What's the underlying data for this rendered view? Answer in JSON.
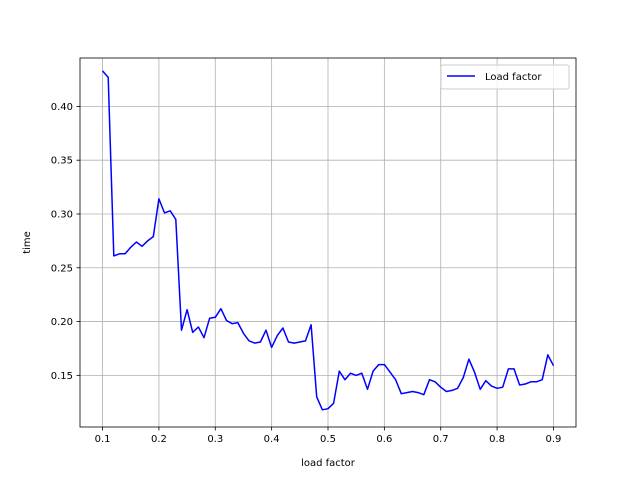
{
  "chart_data": {
    "type": "line",
    "title": "",
    "xlabel": "load factor",
    "ylabel": "time",
    "xlim": [
      0.06,
      0.94
    ],
    "ylim": [
      0.102,
      0.445
    ],
    "xticks": [
      "0.1",
      "0.2",
      "0.3",
      "0.4",
      "0.5",
      "0.6",
      "0.7",
      "0.8",
      "0.9"
    ],
    "yticks": [
      "0.15",
      "0.20",
      "0.25",
      "0.30",
      "0.35",
      "0.40"
    ],
    "grid": true,
    "legend_position": "top-right",
    "series": [
      {
        "name": "Load factor",
        "color": "#0000ff",
        "x": [
          0.1,
          0.11,
          0.12,
          0.13,
          0.14,
          0.15,
          0.16,
          0.17,
          0.18,
          0.19,
          0.2,
          0.21,
          0.22,
          0.23,
          0.24,
          0.25,
          0.26,
          0.27,
          0.28,
          0.29,
          0.3,
          0.31,
          0.32,
          0.33,
          0.34,
          0.35,
          0.36,
          0.37,
          0.38,
          0.39,
          0.4,
          0.41,
          0.42,
          0.43,
          0.44,
          0.45,
          0.46,
          0.47,
          0.48,
          0.49,
          0.5,
          0.51,
          0.52,
          0.53,
          0.54,
          0.55,
          0.56,
          0.57,
          0.58,
          0.59,
          0.6,
          0.61,
          0.62,
          0.63,
          0.64,
          0.65,
          0.66,
          0.67,
          0.68,
          0.69,
          0.7,
          0.71,
          0.72,
          0.73,
          0.74,
          0.75,
          0.76,
          0.77,
          0.78,
          0.79,
          0.8,
          0.81,
          0.82,
          0.83,
          0.84,
          0.85,
          0.86,
          0.87,
          0.88,
          0.89,
          0.9
        ],
        "y": [
          0.433,
          0.427,
          0.261,
          0.263,
          0.263,
          0.269,
          0.274,
          0.27,
          0.275,
          0.279,
          0.314,
          0.301,
          0.303,
          0.295,
          0.192,
          0.211,
          0.19,
          0.195,
          0.185,
          0.203,
          0.204,
          0.212,
          0.201,
          0.198,
          0.199,
          0.189,
          0.182,
          0.18,
          0.181,
          0.192,
          0.176,
          0.187,
          0.194,
          0.181,
          0.18,
          0.181,
          0.182,
          0.197,
          0.13,
          0.118,
          0.119,
          0.124,
          0.154,
          0.146,
          0.152,
          0.15,
          0.152,
          0.137,
          0.154,
          0.16,
          0.16,
          0.153,
          0.146,
          0.133,
          0.134,
          0.135,
          0.134,
          0.132,
          0.146,
          0.144,
          0.139,
          0.135,
          0.136,
          0.138,
          0.148,
          0.165,
          0.153,
          0.137,
          0.145,
          0.14,
          0.138,
          0.139,
          0.156,
          0.156,
          0.141,
          0.142,
          0.144,
          0.144,
          0.146,
          0.169,
          0.159
        ]
      }
    ]
  }
}
